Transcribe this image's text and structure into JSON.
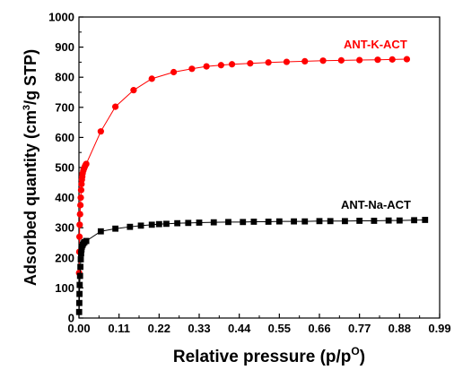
{
  "chart_data": {
    "type": "scatter",
    "xlabel": {
      "main": "Relative pressure (p/p",
      "sup": "O",
      "end": ")"
    },
    "ylabel": {
      "main": "Adsorbed quantity (cm",
      "sup": "3",
      "end": "/g STP)"
    },
    "xlim": [
      0,
      0.99
    ],
    "ylim": [
      0,
      1000
    ],
    "x_ticks": [
      "0.00",
      "0.11",
      "0.22",
      "0.33",
      "0.44",
      "0.55",
      "0.66",
      "0.77",
      "0.88",
      "0.99"
    ],
    "y_ticks": [
      "0",
      "100",
      "200",
      "300",
      "400",
      "500",
      "600",
      "700",
      "800",
      "900",
      "1000"
    ],
    "grid": false,
    "series": [
      {
        "label": "ANT-K-ACT",
        "color": "#ff0000",
        "marker": "circle",
        "points": [
          [
            0.0005,
            150
          ],
          [
            0.001,
            220
          ],
          [
            0.0015,
            270
          ],
          [
            0.002,
            310
          ],
          [
            0.003,
            345
          ],
          [
            0.004,
            375
          ],
          [
            0.005,
            400
          ],
          [
            0.006,
            425
          ],
          [
            0.007,
            445
          ],
          [
            0.008,
            460
          ],
          [
            0.009,
            470
          ],
          [
            0.01,
            480
          ],
          [
            0.012,
            490
          ],
          [
            0.014,
            497
          ],
          [
            0.016,
            503
          ],
          [
            0.018,
            508
          ],
          [
            0.02,
            512
          ],
          [
            0.06,
            620
          ],
          [
            0.1,
            702
          ],
          [
            0.15,
            757
          ],
          [
            0.2,
            795
          ],
          [
            0.26,
            817
          ],
          [
            0.31,
            828
          ],
          [
            0.35,
            836
          ],
          [
            0.39,
            840
          ],
          [
            0.42,
            843
          ],
          [
            0.47,
            846
          ],
          [
            0.52,
            849
          ],
          [
            0.57,
            851
          ],
          [
            0.62,
            853
          ],
          [
            0.67,
            855
          ],
          [
            0.72,
            856
          ],
          [
            0.77,
            857
          ],
          [
            0.82,
            858
          ],
          [
            0.86,
            859
          ],
          [
            0.9,
            860
          ]
        ]
      },
      {
        "label": "ANT-Na-ACT",
        "color": "#000000",
        "marker": "square",
        "points": [
          [
            0.0005,
            20
          ],
          [
            0.001,
            50
          ],
          [
            0.0015,
            80
          ],
          [
            0.002,
            110
          ],
          [
            0.003,
            140
          ],
          [
            0.004,
            170
          ],
          [
            0.005,
            195
          ],
          [
            0.006,
            215
          ],
          [
            0.007,
            228
          ],
          [
            0.008,
            237
          ],
          [
            0.01,
            243
          ],
          [
            0.012,
            248
          ],
          [
            0.015,
            252
          ],
          [
            0.02,
            256
          ],
          [
            0.06,
            288
          ],
          [
            0.1,
            297
          ],
          [
            0.14,
            303
          ],
          [
            0.17,
            307
          ],
          [
            0.2,
            310
          ],
          [
            0.22,
            312
          ],
          [
            0.24,
            313
          ],
          [
            0.27,
            315
          ],
          [
            0.3,
            316
          ],
          [
            0.33,
            317
          ],
          [
            0.37,
            318
          ],
          [
            0.41,
            319
          ],
          [
            0.45,
            319
          ],
          [
            0.48,
            320
          ],
          [
            0.52,
            320
          ],
          [
            0.55,
            321
          ],
          [
            0.59,
            321
          ],
          [
            0.62,
            321
          ],
          [
            0.66,
            322
          ],
          [
            0.69,
            322
          ],
          [
            0.73,
            322
          ],
          [
            0.77,
            323
          ],
          [
            0.81,
            323
          ],
          [
            0.85,
            324
          ],
          [
            0.88,
            324
          ],
          [
            0.92,
            325
          ],
          [
            0.95,
            326
          ]
        ]
      }
    ]
  }
}
